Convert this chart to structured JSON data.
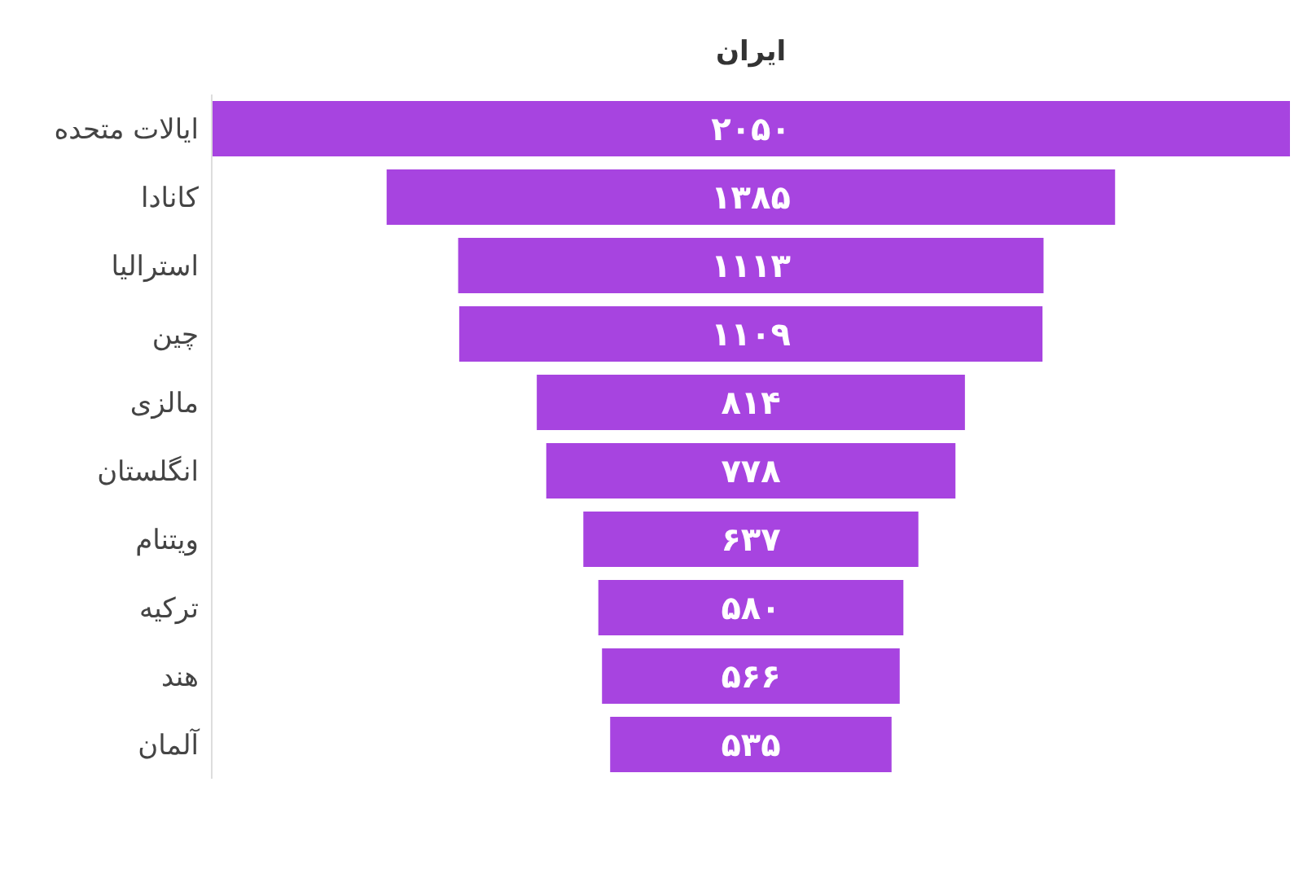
{
  "chart_data": {
    "type": "other",
    "title": "ایران",
    "categories": [
      "ایالات متحده",
      "کانادا",
      "استرالیا",
      "چین",
      "مالزی",
      "انگلستان",
      "ویتنام",
      "ترکیه",
      "هند",
      "آلمان"
    ],
    "values": [
      2050,
      1385,
      1113,
      1109,
      814,
      778,
      637,
      580,
      566,
      535
    ],
    "value_labels": [
      "۲۰۵۰",
      "۱۳۸۵",
      "۱۱۱۳",
      "۱۱۰۹",
      "۸۱۴",
      "۷۷۸",
      "۶۳۷",
      "۵۸۰",
      "۵۶۶",
      "۵۳۵"
    ],
    "color": "#a744e0"
  }
}
